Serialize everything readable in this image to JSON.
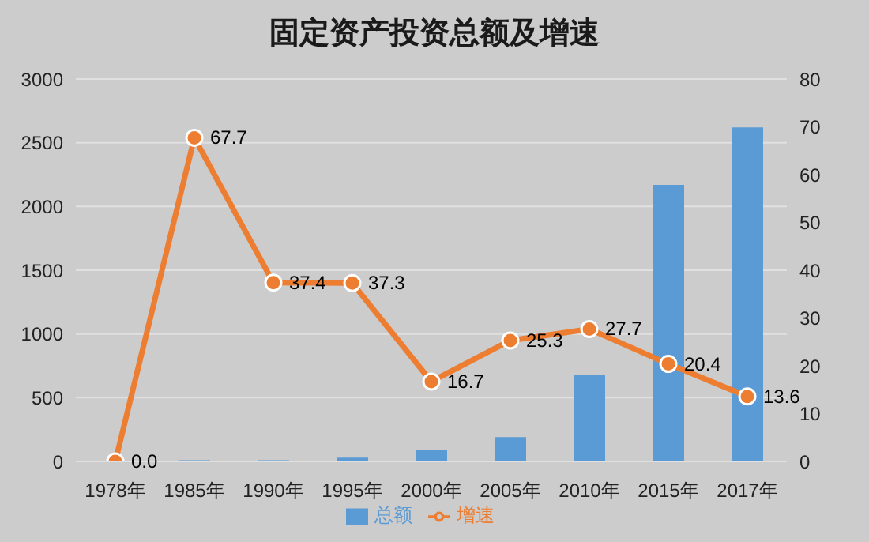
{
  "chart_data": {
    "type": "bar",
    "title": "固定资产投资总额及增速",
    "categories": [
      "1978年",
      "1985年",
      "1990年",
      "1995年",
      "2000年",
      "2005年",
      "2010年",
      "2015年",
      "2017年"
    ],
    "series": [
      {
        "name": "总额",
        "color": "#5b9bd5",
        "values": [
          null,
          10,
          10,
          30,
          90,
          190,
          680,
          2170,
          2620
        ]
      },
      {
        "name": "增速",
        "type": "line",
        "axis": "y2",
        "color": "#ed7d31",
        "values": [
          0.0,
          67.7,
          37.4,
          37.3,
          16.7,
          25.3,
          27.7,
          20.4,
          13.6
        ],
        "value_labels": [
          "0.0",
          "67.7",
          "37.4",
          "37.3",
          "16.7",
          "25.3",
          "27.7",
          "20.4",
          "13.6"
        ]
      }
    ],
    "ylim": [
      0,
      3000
    ],
    "yticks": [
      0,
      500,
      1000,
      1500,
      2000,
      2500,
      3000
    ],
    "y2lim": [
      0,
      80
    ],
    "y2ticks": [
      0,
      10,
      20,
      30,
      40,
      50,
      60,
      70,
      80
    ],
    "grid": "y",
    "legend": "bottom",
    "marker": "circle"
  }
}
